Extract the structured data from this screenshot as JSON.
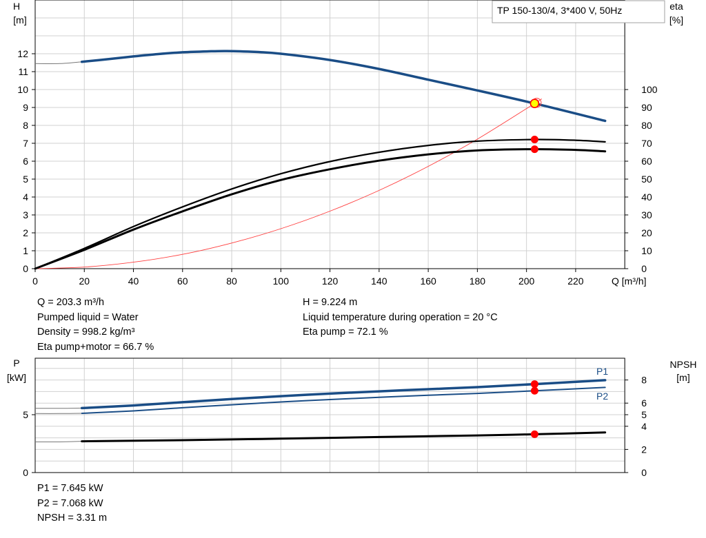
{
  "legend_box": "TP 150-130/4, 3*400 V, 50Hz",
  "colors": {
    "pump_blue": "#1a4d86",
    "grid": "#d0d0d0",
    "op_point": "#ff0000",
    "op_point_fill": "#ffff00",
    "system_curve": "#ff3b3b"
  },
  "chart_data": [
    {
      "type": "line",
      "axes": {
        "x": {
          "label": "Q [m³/h]",
          "range": [
            0,
            240
          ],
          "ticks": [
            0,
            20,
            40,
            60,
            80,
            100,
            120,
            140,
            160,
            180,
            200,
            220
          ]
        },
        "y_left": {
          "label_line1": "H",
          "label_line2": "[m]",
          "range": [
            0,
            14
          ],
          "ticks": [
            0,
            1,
            2,
            3,
            4,
            5,
            6,
            7,
            8,
            9,
            10,
            11,
            12
          ]
        },
        "y_right": {
          "label_line1": "eta",
          "label_line2": "[%]",
          "range": [
            0,
            140
          ],
          "ticks": [
            0,
            10,
            20,
            30,
            40,
            50,
            60,
            70,
            80,
            90,
            100
          ]
        }
      },
      "grid": true,
      "series": [
        {
          "role": "head",
          "axis": "left",
          "x": [
            0,
            10,
            19,
            30,
            40,
            50,
            60,
            70,
            78,
            90,
            100,
            120,
            140,
            160,
            180,
            203.3,
            232
          ],
          "y": [
            11.45,
            11.45,
            11.55,
            11.7,
            11.85,
            11.98,
            12.08,
            12.13,
            12.15,
            12.1,
            12.0,
            11.65,
            11.15,
            10.55,
            9.95,
            9.224,
            8.25
          ]
        },
        {
          "role": "eta-pump",
          "axis": "right",
          "x": [
            0,
            20,
            40,
            60,
            80,
            100,
            120,
            140,
            160,
            180,
            203.3,
            220,
            232
          ],
          "y": [
            0,
            11.3,
            23.5,
            34.5,
            44.5,
            53,
            59.8,
            65,
            68.8,
            71.2,
            72.1,
            71.7,
            70.8
          ]
        },
        {
          "role": "eta-pump-motor",
          "axis": "right",
          "x": [
            0,
            20,
            40,
            60,
            80,
            100,
            120,
            140,
            160,
            180,
            203.3,
            220,
            232
          ],
          "y": [
            0,
            10.5,
            21.8,
            32,
            41.5,
            49.5,
            55.5,
            60.3,
            63.8,
            66,
            66.7,
            66.3,
            65.5
          ]
        },
        {
          "role": "system-curve",
          "axis": "left",
          "x": [
            0,
            20,
            40,
            60,
            80,
            100,
            120,
            140,
            160,
            180,
            203.3,
            206
          ],
          "y": [
            0,
            0.09,
            0.36,
            0.8,
            1.43,
            2.23,
            3.21,
            4.37,
            5.71,
            7.23,
            9.224,
            9.47
          ]
        }
      ],
      "markers": [
        {
          "series": "head",
          "x": 203.3,
          "y": 9.224,
          "style": "yellow"
        },
        {
          "series": "eta-pump",
          "x": 203.3,
          "y": 72.1,
          "style": "red"
        },
        {
          "series": "eta-pump-motor",
          "x": 203.3,
          "y": 66.7,
          "style": "red"
        }
      ]
    },
    {
      "type": "line",
      "axes": {
        "x": {
          "range": [
            0,
            240
          ]
        },
        "y_left": {
          "label_line1": "P",
          "label_line2": "[kW]",
          "range": [
            0,
            10
          ],
          "ticks": [
            0,
            5
          ]
        },
        "y_right": {
          "label_line1": "NPSH",
          "label_line2": "[m]",
          "range": [
            0,
            10
          ],
          "ticks": [
            0,
            2,
            4,
            5,
            6,
            8
          ]
        }
      },
      "grid": true,
      "series": [
        {
          "name": "P1",
          "axis": "left",
          "x": [
            0,
            10,
            19,
            40,
            60,
            80,
            100,
            120,
            140,
            160,
            180,
            203.3,
            232
          ],
          "y": [
            5.55,
            5.55,
            5.57,
            5.8,
            6.08,
            6.35,
            6.6,
            6.82,
            7.02,
            7.2,
            7.38,
            7.645,
            7.98
          ]
        },
        {
          "name": "P2",
          "axis": "left",
          "x": [
            0,
            10,
            19,
            40,
            60,
            80,
            100,
            120,
            140,
            160,
            180,
            203.3,
            232
          ],
          "y": [
            5.1,
            5.1,
            5.12,
            5.33,
            5.6,
            5.86,
            6.1,
            6.31,
            6.5,
            6.68,
            6.84,
            7.068,
            7.36
          ]
        },
        {
          "role": "npsh",
          "axis": "right",
          "x": [
            0,
            10,
            19,
            60,
            100,
            140,
            180,
            203.3,
            232
          ],
          "y": [
            2.65,
            2.65,
            2.7,
            2.8,
            2.93,
            3.07,
            3.21,
            3.31,
            3.47
          ]
        }
      ],
      "markers": [
        {
          "series": "P1",
          "x": 203.3,
          "y": 7.645,
          "style": "red"
        },
        {
          "series": "P2",
          "x": 203.3,
          "y": 7.068,
          "style": "red"
        },
        {
          "series": "npsh",
          "x": 203.3,
          "y": 3.31,
          "style": "red"
        }
      ]
    }
  ],
  "info_top_left": [
    "Q = 203.3 m³/h",
    "Pumped liquid = Water",
    "Density = 998.2 kg/m³",
    "Eta pump+motor = 66.7 %"
  ],
  "info_top_right": [
    "H = 9.224 m",
    "Liquid temperature during operation = 20 °C",
    "Eta pump = 72.1 %"
  ],
  "info_bottom_left": [
    "P1 = 7.645 kW",
    "P2 = 7.068 kW",
    "NPSH = 3.31 m"
  ]
}
